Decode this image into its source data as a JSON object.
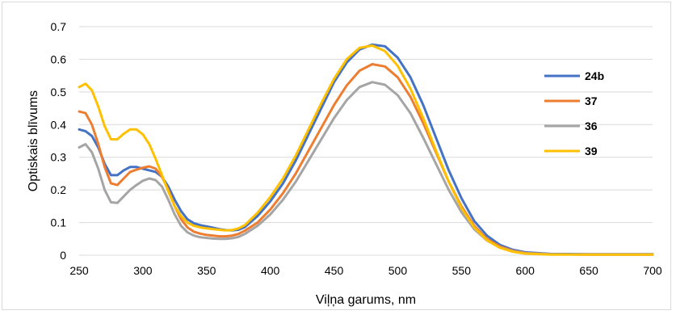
{
  "chart_data": {
    "type": "line",
    "title": "",
    "xlabel": "Viļņa garums, nm",
    "ylabel": "Optiskais blīvums",
    "xlim": [
      250,
      700
    ],
    "ylim": [
      0,
      0.7
    ],
    "x_ticks": [
      "250",
      "300",
      "350",
      "400",
      "450",
      "500",
      "550",
      "600",
      "650",
      "700"
    ],
    "y_ticks": [
      "0",
      "0.1",
      "0.2",
      "0.3",
      "0.4",
      "0.5",
      "0.6",
      "0.7"
    ],
    "grid": "horizontal",
    "legend_position": "right",
    "series": [
      {
        "name": "24b",
        "color": "#4472c4",
        "points": [
          [
            250,
            0.385
          ],
          [
            255,
            0.38
          ],
          [
            260,
            0.365
          ],
          [
            265,
            0.33
          ],
          [
            270,
            0.28
          ],
          [
            275,
            0.245
          ],
          [
            280,
            0.245
          ],
          [
            285,
            0.26
          ],
          [
            290,
            0.27
          ],
          [
            295,
            0.27
          ],
          [
            300,
            0.265
          ],
          [
            305,
            0.26
          ],
          [
            310,
            0.255
          ],
          [
            315,
            0.24
          ],
          [
            320,
            0.21
          ],
          [
            325,
            0.17
          ],
          [
            330,
            0.135
          ],
          [
            335,
            0.11
          ],
          [
            340,
            0.098
          ],
          [
            345,
            0.092
          ],
          [
            350,
            0.088
          ],
          [
            355,
            0.084
          ],
          [
            360,
            0.08
          ],
          [
            365,
            0.077
          ],
          [
            370,
            0.076
          ],
          [
            375,
            0.078
          ],
          [
            380,
            0.086
          ],
          [
            390,
            0.12
          ],
          [
            400,
            0.165
          ],
          [
            410,
            0.22
          ],
          [
            420,
            0.29
          ],
          [
            430,
            0.37
          ],
          [
            440,
            0.45
          ],
          [
            450,
            0.53
          ],
          [
            460,
            0.59
          ],
          [
            470,
            0.63
          ],
          [
            480,
            0.645
          ],
          [
            490,
            0.64
          ],
          [
            500,
            0.605
          ],
          [
            510,
            0.545
          ],
          [
            520,
            0.46
          ],
          [
            530,
            0.36
          ],
          [
            540,
            0.26
          ],
          [
            550,
            0.175
          ],
          [
            560,
            0.105
          ],
          [
            570,
            0.06
          ],
          [
            580,
            0.032
          ],
          [
            590,
            0.017
          ],
          [
            600,
            0.009
          ],
          [
            620,
            0.004
          ],
          [
            650,
            0.003
          ],
          [
            700,
            0.003
          ]
        ]
      },
      {
        "name": "37",
        "color": "#ed7d31",
        "points": [
          [
            250,
            0.44
          ],
          [
            255,
            0.435
          ],
          [
            260,
            0.4
          ],
          [
            265,
            0.34
          ],
          [
            270,
            0.27
          ],
          [
            275,
            0.22
          ],
          [
            280,
            0.215
          ],
          [
            285,
            0.235
          ],
          [
            290,
            0.255
          ],
          [
            295,
            0.262
          ],
          [
            300,
            0.268
          ],
          [
            305,
            0.272
          ],
          [
            310,
            0.265
          ],
          [
            315,
            0.24
          ],
          [
            320,
            0.2
          ],
          [
            325,
            0.15
          ],
          [
            330,
            0.11
          ],
          [
            335,
            0.085
          ],
          [
            340,
            0.072
          ],
          [
            345,
            0.066
          ],
          [
            350,
            0.062
          ],
          [
            355,
            0.06
          ],
          [
            360,
            0.058
          ],
          [
            365,
            0.058
          ],
          [
            370,
            0.06
          ],
          [
            375,
            0.065
          ],
          [
            380,
            0.075
          ],
          [
            390,
            0.1
          ],
          [
            400,
            0.14
          ],
          [
            410,
            0.19
          ],
          [
            420,
            0.25
          ],
          [
            430,
            0.32
          ],
          [
            440,
            0.39
          ],
          [
            450,
            0.46
          ],
          [
            460,
            0.52
          ],
          [
            470,
            0.565
          ],
          [
            480,
            0.585
          ],
          [
            490,
            0.578
          ],
          [
            500,
            0.545
          ],
          [
            510,
            0.485
          ],
          [
            520,
            0.405
          ],
          [
            530,
            0.315
          ],
          [
            540,
            0.225
          ],
          [
            550,
            0.15
          ],
          [
            560,
            0.09
          ],
          [
            570,
            0.05
          ],
          [
            580,
            0.027
          ],
          [
            590,
            0.014
          ],
          [
            600,
            0.007
          ],
          [
            620,
            0.003
          ],
          [
            650,
            0.002
          ],
          [
            700,
            0.002
          ]
        ]
      },
      {
        "name": "36",
        "color": "#a5a5a5",
        "points": [
          [
            250,
            0.33
          ],
          [
            255,
            0.34
          ],
          [
            260,
            0.315
          ],
          [
            265,
            0.265
          ],
          [
            270,
            0.2
          ],
          [
            275,
            0.162
          ],
          [
            280,
            0.16
          ],
          [
            285,
            0.18
          ],
          [
            290,
            0.2
          ],
          [
            295,
            0.215
          ],
          [
            300,
            0.228
          ],
          [
            305,
            0.235
          ],
          [
            310,
            0.23
          ],
          [
            315,
            0.21
          ],
          [
            320,
            0.17
          ],
          [
            325,
            0.125
          ],
          [
            330,
            0.09
          ],
          [
            335,
            0.07
          ],
          [
            340,
            0.06
          ],
          [
            345,
            0.055
          ],
          [
            350,
            0.053
          ],
          [
            355,
            0.051
          ],
          [
            360,
            0.05
          ],
          [
            365,
            0.05
          ],
          [
            370,
            0.052
          ],
          [
            375,
            0.056
          ],
          [
            380,
            0.065
          ],
          [
            390,
            0.09
          ],
          [
            400,
            0.125
          ],
          [
            410,
            0.17
          ],
          [
            420,
            0.225
          ],
          [
            430,
            0.29
          ],
          [
            440,
            0.355
          ],
          [
            450,
            0.42
          ],
          [
            460,
            0.475
          ],
          [
            470,
            0.515
          ],
          [
            480,
            0.53
          ],
          [
            490,
            0.522
          ],
          [
            500,
            0.49
          ],
          [
            510,
            0.435
          ],
          [
            520,
            0.36
          ],
          [
            530,
            0.28
          ],
          [
            540,
            0.2
          ],
          [
            550,
            0.132
          ],
          [
            560,
            0.08
          ],
          [
            570,
            0.045
          ],
          [
            580,
            0.024
          ],
          [
            590,
            0.012
          ],
          [
            600,
            0.006
          ],
          [
            620,
            0.003
          ],
          [
            650,
            0.002
          ],
          [
            700,
            0.002
          ]
        ]
      },
      {
        "name": "39",
        "color": "#ffc000",
        "points": [
          [
            250,
            0.515
          ],
          [
            255,
            0.525
          ],
          [
            260,
            0.505
          ],
          [
            265,
            0.455
          ],
          [
            270,
            0.395
          ],
          [
            275,
            0.355
          ],
          [
            280,
            0.355
          ],
          [
            285,
            0.372
          ],
          [
            290,
            0.385
          ],
          [
            295,
            0.385
          ],
          [
            300,
            0.37
          ],
          [
            305,
            0.34
          ],
          [
            310,
            0.295
          ],
          [
            315,
            0.245
          ],
          [
            320,
            0.195
          ],
          [
            325,
            0.15
          ],
          [
            330,
            0.12
          ],
          [
            335,
            0.1
          ],
          [
            340,
            0.09
          ],
          [
            345,
            0.085
          ],
          [
            350,
            0.082
          ],
          [
            355,
            0.08
          ],
          [
            360,
            0.078
          ],
          [
            365,
            0.076
          ],
          [
            370,
            0.077
          ],
          [
            375,
            0.082
          ],
          [
            380,
            0.092
          ],
          [
            390,
            0.13
          ],
          [
            400,
            0.178
          ],
          [
            410,
            0.235
          ],
          [
            420,
            0.305
          ],
          [
            430,
            0.385
          ],
          [
            440,
            0.465
          ],
          [
            450,
            0.54
          ],
          [
            460,
            0.6
          ],
          [
            470,
            0.635
          ],
          [
            480,
            0.642
          ],
          [
            490,
            0.625
          ],
          [
            500,
            0.58
          ],
          [
            510,
            0.51
          ],
          [
            520,
            0.42
          ],
          [
            530,
            0.32
          ],
          [
            540,
            0.225
          ],
          [
            550,
            0.145
          ],
          [
            560,
            0.085
          ],
          [
            570,
            0.046
          ],
          [
            580,
            0.023
          ],
          [
            590,
            0.011
          ],
          [
            600,
            0.005
          ],
          [
            620,
            0.002
          ],
          [
            650,
            0.002
          ],
          [
            700,
            0.002
          ]
        ]
      }
    ]
  }
}
